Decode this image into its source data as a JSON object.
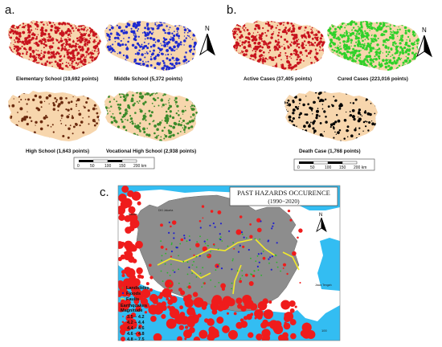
{
  "panels": {
    "a": {
      "letter": "a.",
      "maps": [
        {
          "label": "Elementary School (19,692 points)",
          "color": "#c8141e",
          "density": 1.0
        },
        {
          "label": "Middle School (5,372 points)",
          "color": "#1e2ad0",
          "density": 0.6
        },
        {
          "label": "High School (1,643 points)",
          "color": "#6b2a0e",
          "density": 0.22
        },
        {
          "label": "Vocational High School (2,938 points)",
          "color": "#3c8a2a",
          "density": 0.45
        }
      ],
      "scale": {
        "ticks": [
          "0",
          "50",
          "100",
          "150",
          "200 km"
        ]
      },
      "north": "N"
    },
    "b": {
      "letter": "b.",
      "maps": [
        {
          "label": "Active Cases (37,405 points)",
          "color": "#c8141e",
          "density": 0.75
        },
        {
          "label": "Cured Cases (223,016 points)",
          "color": "#2fd12a",
          "density": 1.0
        },
        {
          "label": "Death Case (1,768 points)",
          "color": "#000000",
          "density": 0.3
        }
      ],
      "scale": {
        "ticks": [
          "0",
          "50",
          "100",
          "150",
          "200 km"
        ]
      },
      "north": "N"
    },
    "c": {
      "letter": "c.",
      "title_line1": "PAST HAZARDS OCCURENCE",
      "title_line2": "(1990−2020)",
      "north": "N",
      "places": [
        "DKI Jakarta",
        "Banten",
        "Jawa Tengah"
      ],
      "legend": {
        "items": [
          "Landslides",
          "Floods",
          "Faults"
        ],
        "eq_heading_1": "Earthquakes",
        "eq_heading_2": "Magnitude",
        "magnitudes": [
          "3.5 − 4.2",
          "4.2 − 4.4",
          "4.4 − 4.6",
          "4.6 − 4.8",
          "4.8 − 7.5"
        ]
      },
      "scale_end": "100"
    }
  },
  "colors": {
    "land": "#f7d6ad",
    "sea": "#33bdf2",
    "province_grey": "#8d8d8d",
    "neighbor_land": "#ffffff",
    "earthquake": "#ef1c1c",
    "landslide": "#2ab52a",
    "flood": "#2222cc",
    "fault": "#f2ea2a"
  }
}
